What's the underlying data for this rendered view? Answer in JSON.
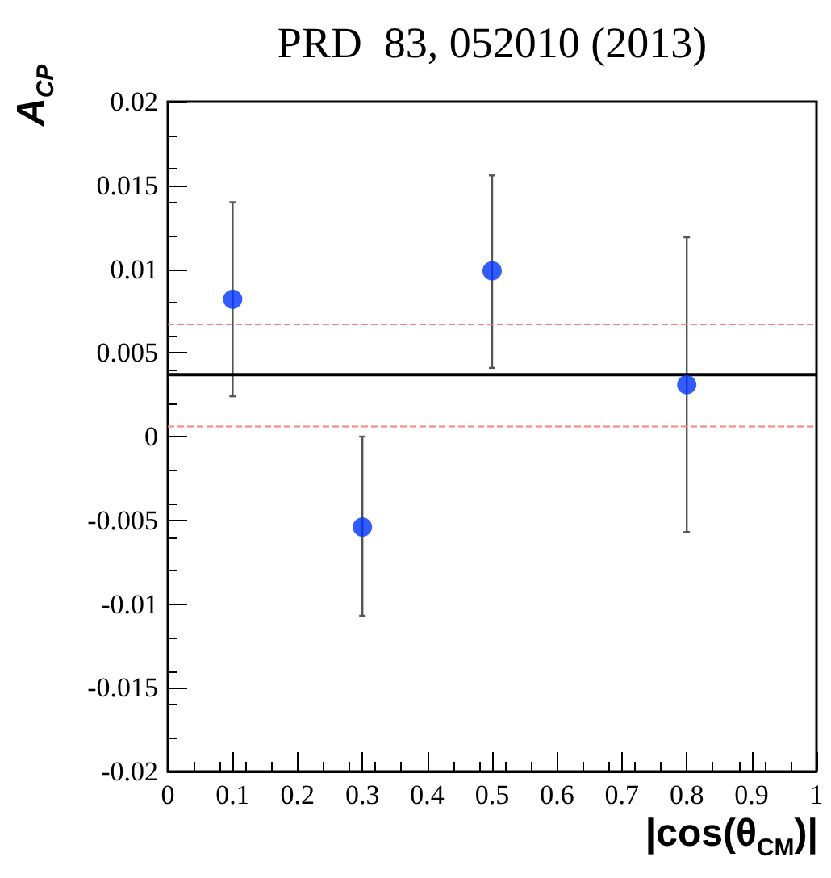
{
  "chart_data": {
    "type": "scatter",
    "title": "PRD  83, 052010 (2013)",
    "xlabel": "|cos(θ$_{CM}$)|",
    "ylabel": "A$_{CP}$",
    "x": [
      0.1,
      0.3,
      0.5,
      0.8
    ],
    "series": [
      {
        "color": "#0033ff",
        "values": [
          0.0082,
          -0.0054,
          0.0099,
          0.0031
        ],
        "errors": [
          [
            0.0024,
            0.014
          ],
          [
            -0.0107,
            0.0
          ],
          [
            0.0041,
            0.0156
          ],
          [
            -0.0057,
            0.0119
          ]
        ]
      }
    ],
    "xlim": [
      0,
      1
    ],
    "xticks": [
      0,
      0.1,
      0.2,
      0.3,
      0.4,
      0.5,
      0.6,
      0.7,
      0.8,
      0.9,
      1
    ],
    "ylim": [
      -0.02,
      0.02
    ],
    "yticks": [
      -0.02,
      -0.015,
      -0.01,
      -0.005,
      0,
      0.005,
      0.01,
      0.015,
      0.02
    ],
    "ref_lines": [
      {
        "axis": "y",
        "value": 0.0037,
        "color": "#000000",
        "line_style": "solid"
      },
      {
        "axis": "y",
        "value": 0.0067,
        "color": "#ff8080",
        "line_style": "dashed"
      },
      {
        "axis": "y",
        "value": 0.0006,
        "color": "#ff8080",
        "line_style": "dashed"
      }
    ],
    "marker": "circle"
  }
}
